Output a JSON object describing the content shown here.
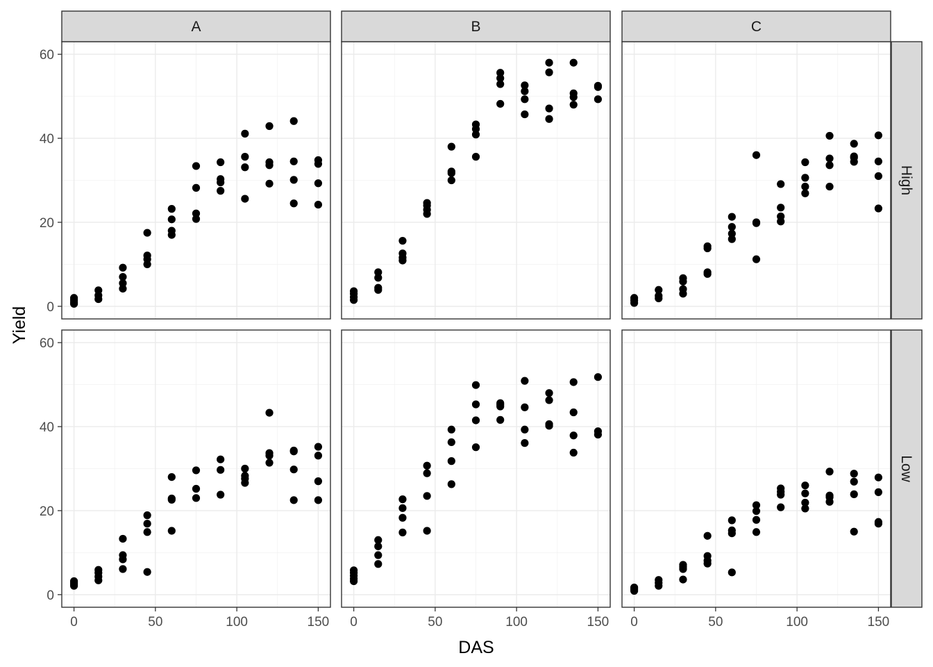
{
  "chart_data": {
    "type": "scatter",
    "xlabel": "DAS",
    "ylabel": "Yield",
    "xlim": [
      0,
      150
    ],
    "ylim": [
      0,
      60
    ],
    "x_ticks": [
      0,
      50,
      100,
      150
    ],
    "y_ticks": [
      0,
      20,
      40,
      60
    ],
    "grid": true,
    "col_facets": [
      "A",
      "B",
      "C"
    ],
    "row_facets": [
      "High",
      "Low"
    ],
    "panels": [
      {
        "col": "A",
        "row": "High",
        "points": [
          [
            0,
            0.6
          ],
          [
            0,
            1.0
          ],
          [
            0,
            1.5
          ],
          [
            0,
            2.0
          ],
          [
            15,
            1.7
          ],
          [
            15,
            2.6
          ],
          [
            15,
            3.8
          ],
          [
            30,
            4.2
          ],
          [
            30,
            5.5
          ],
          [
            30,
            7.0
          ],
          [
            30,
            9.2
          ],
          [
            45,
            10.0
          ],
          [
            45,
            11.2
          ],
          [
            45,
            12.1
          ],
          [
            45,
            17.5
          ],
          [
            60,
            17.0
          ],
          [
            60,
            18.0
          ],
          [
            60,
            20.7
          ],
          [
            60,
            23.2
          ],
          [
            75,
            20.8
          ],
          [
            75,
            22.1
          ],
          [
            75,
            28.2
          ],
          [
            75,
            33.4
          ],
          [
            90,
            27.5
          ],
          [
            90,
            29.5
          ],
          [
            90,
            30.3
          ],
          [
            90,
            34.3
          ],
          [
            105,
            25.6
          ],
          [
            105,
            33.1
          ],
          [
            105,
            35.6
          ],
          [
            105,
            41.1
          ],
          [
            120,
            29.2
          ],
          [
            120,
            33.6
          ],
          [
            120,
            34.3
          ],
          [
            120,
            42.9
          ],
          [
            135,
            24.5
          ],
          [
            135,
            30.1
          ],
          [
            135,
            34.5
          ],
          [
            135,
            44.1
          ],
          [
            150,
            24.2
          ],
          [
            150,
            29.3
          ],
          [
            150,
            33.9
          ],
          [
            150,
            34.8
          ]
        ]
      },
      {
        "col": "B",
        "row": "High",
        "points": [
          [
            0,
            1.5
          ],
          [
            0,
            2.2
          ],
          [
            0,
            3.0
          ],
          [
            0,
            3.6
          ],
          [
            15,
            3.9
          ],
          [
            15,
            4.4
          ],
          [
            15,
            6.8
          ],
          [
            15,
            8.1
          ],
          [
            30,
            10.9
          ],
          [
            30,
            11.6
          ],
          [
            30,
            12.6
          ],
          [
            30,
            15.6
          ],
          [
            45,
            22.0
          ],
          [
            45,
            23.0
          ],
          [
            45,
            24.0
          ],
          [
            45,
            24.6
          ],
          [
            60,
            30.0
          ],
          [
            60,
            31.7
          ],
          [
            60,
            32.1
          ],
          [
            60,
            38.0
          ],
          [
            75,
            35.6
          ],
          [
            75,
            40.9
          ],
          [
            75,
            42.2
          ],
          [
            75,
            43.3
          ],
          [
            90,
            48.2
          ],
          [
            90,
            52.9
          ],
          [
            90,
            54.3
          ],
          [
            90,
            55.6
          ],
          [
            105,
            45.7
          ],
          [
            105,
            49.3
          ],
          [
            105,
            51.2
          ],
          [
            105,
            52.6
          ],
          [
            120,
            44.6
          ],
          [
            120,
            47.1
          ],
          [
            120,
            55.7
          ],
          [
            120,
            58.0
          ],
          [
            135,
            48.0
          ],
          [
            135,
            49.8
          ],
          [
            135,
            50.7
          ],
          [
            135,
            58.0
          ],
          [
            150,
            49.3
          ],
          [
            150,
            52.2
          ],
          [
            150,
            52.5
          ]
        ]
      },
      {
        "col": "C",
        "row": "High",
        "points": [
          [
            0,
            0.8
          ],
          [
            0,
            1.4
          ],
          [
            0,
            2.0
          ],
          [
            15,
            1.9
          ],
          [
            15,
            2.5
          ],
          [
            15,
            3.9
          ],
          [
            30,
            3.0
          ],
          [
            30,
            4.1
          ],
          [
            30,
            5.9
          ],
          [
            30,
            6.7
          ],
          [
            45,
            7.7
          ],
          [
            45,
            8.1
          ],
          [
            45,
            13.8
          ],
          [
            45,
            14.3
          ],
          [
            60,
            16.0
          ],
          [
            60,
            17.3
          ],
          [
            60,
            18.9
          ],
          [
            60,
            21.3
          ],
          [
            75,
            11.2
          ],
          [
            75,
            19.8
          ],
          [
            75,
            20.0
          ],
          [
            75,
            36.0
          ],
          [
            90,
            20.2
          ],
          [
            90,
            21.4
          ],
          [
            90,
            23.5
          ],
          [
            90,
            29.1
          ],
          [
            105,
            26.9
          ],
          [
            105,
            28.5
          ],
          [
            105,
            30.6
          ],
          [
            105,
            34.3
          ],
          [
            120,
            28.5
          ],
          [
            120,
            33.6
          ],
          [
            120,
            35.2
          ],
          [
            120,
            40.6
          ],
          [
            135,
            34.4
          ],
          [
            135,
            35.4
          ],
          [
            135,
            35.7
          ],
          [
            135,
            38.7
          ],
          [
            150,
            23.3
          ],
          [
            150,
            31.0
          ],
          [
            150,
            34.5
          ],
          [
            150,
            40.7
          ]
        ]
      },
      {
        "col": "A",
        "row": "Low",
        "points": [
          [
            0,
            2.1
          ],
          [
            0,
            2.5
          ],
          [
            0,
            2.9
          ],
          [
            0,
            3.2
          ],
          [
            15,
            3.4
          ],
          [
            15,
            4.3
          ],
          [
            15,
            5.2
          ],
          [
            15,
            5.9
          ],
          [
            30,
            6.1
          ],
          [
            30,
            8.4
          ],
          [
            30,
            9.4
          ],
          [
            30,
            13.3
          ],
          [
            45,
            5.4
          ],
          [
            45,
            14.9
          ],
          [
            45,
            16.9
          ],
          [
            45,
            18.9
          ],
          [
            60,
            15.2
          ],
          [
            60,
            22.6
          ],
          [
            60,
            22.9
          ],
          [
            60,
            28.0
          ],
          [
            75,
            23.0
          ],
          [
            75,
            25.2
          ],
          [
            75,
            29.6
          ],
          [
            90,
            23.8
          ],
          [
            90,
            29.7
          ],
          [
            90,
            32.2
          ],
          [
            105,
            26.6
          ],
          [
            105,
            27.6
          ],
          [
            105,
            28.3
          ],
          [
            105,
            30.0
          ],
          [
            120,
            31.4
          ],
          [
            120,
            33.1
          ],
          [
            120,
            33.7
          ],
          [
            120,
            43.3
          ],
          [
            135,
            22.5
          ],
          [
            135,
            29.8
          ],
          [
            135,
            34.1
          ],
          [
            135,
            34.3
          ],
          [
            150,
            22.5
          ],
          [
            150,
            27.0
          ],
          [
            150,
            33.1
          ],
          [
            150,
            35.2
          ]
        ]
      },
      {
        "col": "B",
        "row": "Low",
        "points": [
          [
            0,
            3.2
          ],
          [
            0,
            3.8
          ],
          [
            0,
            4.5
          ],
          [
            0,
            5.2
          ],
          [
            0,
            5.8
          ],
          [
            15,
            7.3
          ],
          [
            15,
            9.4
          ],
          [
            15,
            11.5
          ],
          [
            15,
            13.0
          ],
          [
            30,
            14.8
          ],
          [
            30,
            18.3
          ],
          [
            30,
            20.6
          ],
          [
            30,
            22.7
          ],
          [
            45,
            15.2
          ],
          [
            45,
            23.5
          ],
          [
            45,
            28.9
          ],
          [
            45,
            30.7
          ],
          [
            60,
            26.3
          ],
          [
            60,
            31.8
          ],
          [
            60,
            36.3
          ],
          [
            60,
            39.3
          ],
          [
            75,
            35.1
          ],
          [
            75,
            41.5
          ],
          [
            75,
            45.3
          ],
          [
            75,
            49.9
          ],
          [
            90,
            41.6
          ],
          [
            90,
            44.8
          ],
          [
            90,
            45.2
          ],
          [
            90,
            45.6
          ],
          [
            105,
            36.1
          ],
          [
            105,
            39.3
          ],
          [
            105,
            44.6
          ],
          [
            105,
            50.9
          ],
          [
            120,
            40.2
          ],
          [
            120,
            40.6
          ],
          [
            120,
            46.3
          ],
          [
            120,
            48.0
          ],
          [
            135,
            33.8
          ],
          [
            135,
            37.9
          ],
          [
            135,
            43.4
          ],
          [
            135,
            50.6
          ],
          [
            150,
            38.1
          ],
          [
            150,
            38.9
          ],
          [
            150,
            51.8
          ]
        ]
      },
      {
        "col": "C",
        "row": "Low",
        "points": [
          [
            0,
            0.9
          ],
          [
            0,
            1.3
          ],
          [
            0,
            1.7
          ],
          [
            15,
            2.1
          ],
          [
            15,
            2.8
          ],
          [
            15,
            3.5
          ],
          [
            30,
            3.6
          ],
          [
            30,
            6.1
          ],
          [
            30,
            6.6
          ],
          [
            30,
            7.1
          ],
          [
            45,
            7.4
          ],
          [
            45,
            8.1
          ],
          [
            45,
            9.2
          ],
          [
            45,
            14.0
          ],
          [
            60,
            5.3
          ],
          [
            60,
            14.6
          ],
          [
            60,
            15.3
          ],
          [
            60,
            17.7
          ],
          [
            75,
            14.9
          ],
          [
            75,
            17.8
          ],
          [
            75,
            19.9
          ],
          [
            75,
            21.3
          ],
          [
            90,
            20.8
          ],
          [
            90,
            23.8
          ],
          [
            90,
            24.5
          ],
          [
            90,
            25.3
          ],
          [
            105,
            20.5
          ],
          [
            105,
            21.9
          ],
          [
            105,
            24.1
          ],
          [
            105,
            26.0
          ],
          [
            120,
            22.1
          ],
          [
            120,
            23.2
          ],
          [
            120,
            23.6
          ],
          [
            120,
            29.3
          ],
          [
            135,
            15.0
          ],
          [
            135,
            23.9
          ],
          [
            135,
            26.9
          ],
          [
            135,
            28.8
          ],
          [
            150,
            16.9
          ],
          [
            150,
            17.3
          ],
          [
            150,
            24.4
          ],
          [
            150,
            27.9
          ]
        ]
      }
    ]
  }
}
